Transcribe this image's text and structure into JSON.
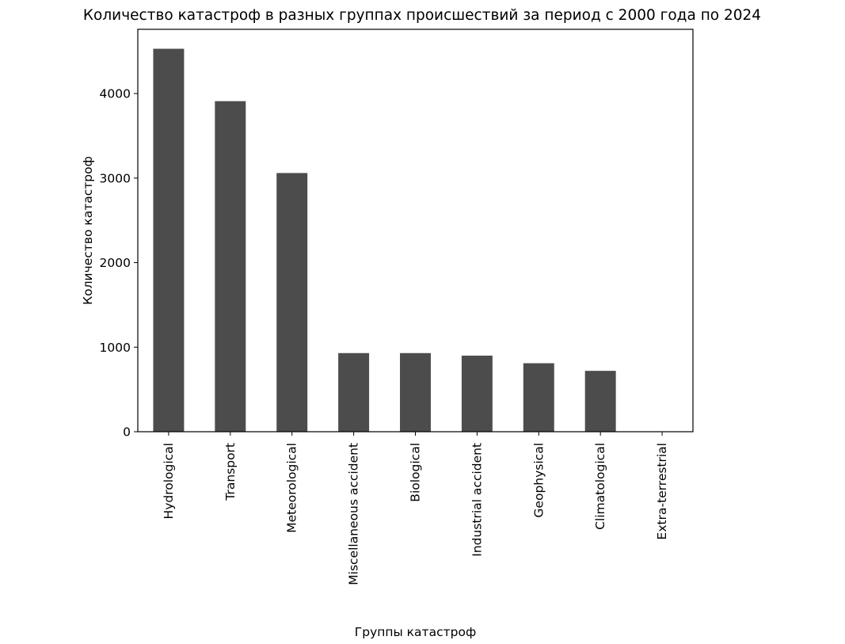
{
  "chart_data": {
    "type": "bar",
    "title": "Количество катастроф в разных группах происшествий за период с 2000 года по 2024",
    "xlabel": "Группы катастроф",
    "ylabel": "Количество катастроф",
    "categories": [
      "Hydrological",
      "Transport",
      "Meteorological",
      "Miscellaneous accident",
      "Biological",
      "Industrial accident",
      "Geophysical",
      "Climatological",
      "Extra-terrestrial"
    ],
    "values": [
      4530,
      3910,
      3060,
      930,
      930,
      900,
      810,
      720,
      1
    ],
    "yticks": [
      0,
      1000,
      2000,
      3000,
      4000
    ],
    "ylim": [
      0,
      4760
    ],
    "bar_color": "#4c4c4c",
    "grid": false,
    "legend": "none"
  }
}
